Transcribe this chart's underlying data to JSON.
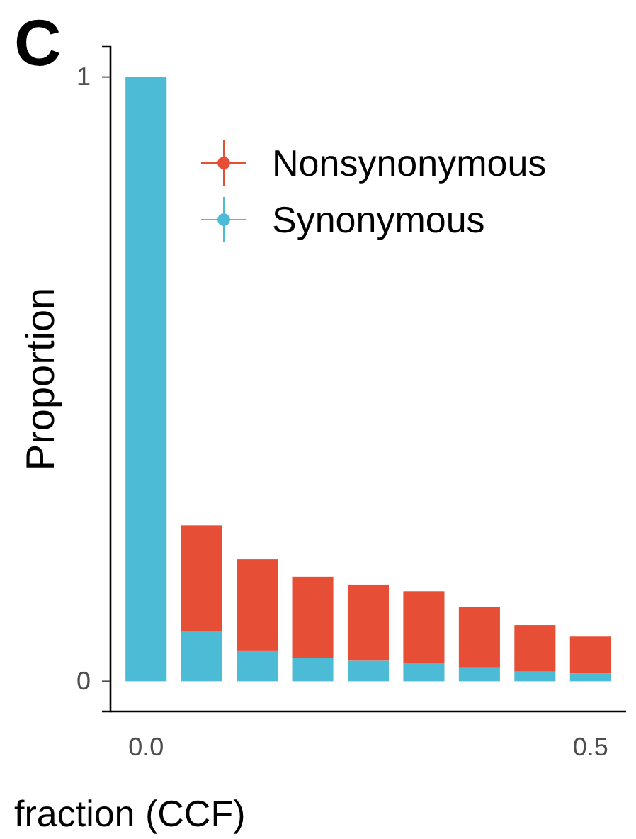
{
  "chart_data": {
    "type": "bar",
    "stacked": true,
    "annotations": [
      "C"
    ],
    "xlabel": "fraction (CCF)",
    "ylabel": "Proportion",
    "x": [
      0,
      0.0625,
      0.125,
      0.1875,
      0.25,
      0.3125,
      0.375,
      0.4375,
      0.5
    ],
    "series": [
      {
        "name": "Synonymous",
        "color": "#4bbbd6",
        "values": [
          1.0,
          0.083,
          0.051,
          0.039,
          0.034,
          0.03,
          0.023,
          0.016,
          0.013
        ]
      },
      {
        "name": "Nonsynonymous",
        "color": "#e64e36",
        "values": [
          0,
          0.175,
          0.151,
          0.134,
          0.126,
          0.119,
          0.1,
          0.077,
          0.061
        ]
      }
    ],
    "xlim": [
      -0.04,
      0.54
    ],
    "xticks": [
      {
        "value": 0,
        "label": "0.0"
      },
      {
        "value": 0.5,
        "label": "0.5"
      }
    ],
    "ylim": [
      -0.05,
      1.05
    ],
    "yticks": [
      0,
      1
    ],
    "legend": "top right",
    "grid": false
  }
}
